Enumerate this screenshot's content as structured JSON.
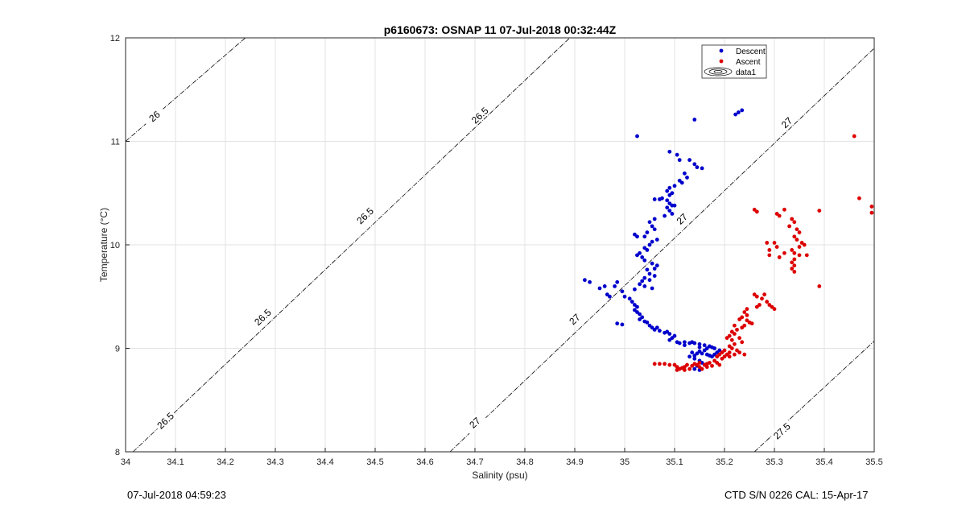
{
  "chart_data": {
    "type": "scatter",
    "title": "p6160673: OSNAP 11 07-Jul-2018 00:32:44Z",
    "xlabel": "Salinity (psu)",
    "ylabel": "Temperature (°C)",
    "xlim": [
      34,
      35.5
    ],
    "ylim": [
      8,
      12
    ],
    "xticks": [
      "34",
      "34.1",
      "34.2",
      "34.3",
      "34.4",
      "34.5",
      "34.6",
      "34.7",
      "34.8",
      "34.9",
      "35",
      "35.1",
      "35.2",
      "35.3",
      "35.4",
      "35.5"
    ],
    "yticks": [
      "8",
      "9",
      "10",
      "11",
      "12"
    ],
    "grid": true,
    "legend": {
      "placement": "top-right",
      "entries": [
        "Descent",
        "Ascent",
        "data1"
      ]
    },
    "colors": {
      "descent": "#0000cc",
      "ascent": "#dd0000",
      "contour": "#000000"
    },
    "contours": [
      {
        "label": "26",
        "points": [
          [
            34.0,
            11.0
          ],
          [
            34.24,
            12.0
          ]
        ]
      },
      {
        "label": "26.5",
        "points": [
          [
            34.015,
            8.0
          ],
          [
            34.89,
            12.0
          ]
        ]
      },
      {
        "label": "27",
        "points": [
          [
            34.65,
            8.0
          ],
          [
            35.5,
            11.9
          ]
        ]
      },
      {
        "label": "27.5",
        "points": [
          [
            35.26,
            8.0
          ],
          [
            35.5,
            9.07
          ]
        ]
      }
    ],
    "contour_labels": [
      {
        "text": "26",
        "x": 34.058,
        "y": 11.24
      },
      {
        "text": "26.5",
        "x": 34.08,
        "y": 8.3
      },
      {
        "text": "26.5",
        "x": 34.275,
        "y": 9.3
      },
      {
        "text": "26.5",
        "x": 34.48,
        "y": 10.28
      },
      {
        "text": "26.5",
        "x": 34.71,
        "y": 11.25
      },
      {
        "text": "27",
        "x": 34.7,
        "y": 8.28
      },
      {
        "text": "27",
        "x": 34.9,
        "y": 9.28
      },
      {
        "text": "27",
        "x": 35.115,
        "y": 10.25
      },
      {
        "text": "27",
        "x": 35.325,
        "y": 11.18
      },
      {
        "text": "27.5",
        "x": 35.315,
        "y": 8.2
      }
    ],
    "series": [
      {
        "name": "Descent",
        "points": [
          [
            35.235,
            11.3
          ],
          [
            35.228,
            11.28
          ],
          [
            35.222,
            11.26
          ],
          [
            35.14,
            11.21
          ],
          [
            35.025,
            11.05
          ],
          [
            35.09,
            10.9
          ],
          [
            35.105,
            10.87
          ],
          [
            35.11,
            10.82
          ],
          [
            35.13,
            10.82
          ],
          [
            35.14,
            10.78
          ],
          [
            35.145,
            10.75
          ],
          [
            35.155,
            10.74
          ],
          [
            35.12,
            10.69
          ],
          [
            35.125,
            10.65
          ],
          [
            35.11,
            10.62
          ],
          [
            35.115,
            10.6
          ],
          [
            35.1,
            10.57
          ],
          [
            35.09,
            10.55
          ],
          [
            35.085,
            10.52
          ],
          [
            35.095,
            10.5
          ],
          [
            35.09,
            10.48
          ],
          [
            35.075,
            10.45
          ],
          [
            35.07,
            10.44
          ],
          [
            35.06,
            10.44
          ],
          [
            35.085,
            10.43
          ],
          [
            35.09,
            10.4
          ],
          [
            35.095,
            10.38
          ],
          [
            35.1,
            10.38
          ],
          [
            35.085,
            10.36
          ],
          [
            35.09,
            10.33
          ],
          [
            35.095,
            10.3
          ],
          [
            35.08,
            10.28
          ],
          [
            35.06,
            10.25
          ],
          [
            35.05,
            10.22
          ],
          [
            35.055,
            10.18
          ],
          [
            35.06,
            10.15
          ],
          [
            35.045,
            10.12
          ],
          [
            35.04,
            10.08
          ],
          [
            35.02,
            10.1
          ],
          [
            35.025,
            10.08
          ],
          [
            35.065,
            10.05
          ],
          [
            35.055,
            10.03
          ],
          [
            35.05,
            10.0
          ],
          [
            35.04,
            9.97
          ],
          [
            35.045,
            9.95
          ],
          [
            35.03,
            9.92
          ],
          [
            35.025,
            9.9
          ],
          [
            35.035,
            9.88
          ],
          [
            35.04,
            9.85
          ],
          [
            35.055,
            9.82
          ],
          [
            35.065,
            9.8
          ],
          [
            35.06,
            9.77
          ],
          [
            35.045,
            9.76
          ],
          [
            35.05,
            9.72
          ],
          [
            35.06,
            9.7
          ],
          [
            35.04,
            9.68
          ],
          [
            35.05,
            9.66
          ],
          [
            35.035,
            9.65
          ],
          [
            35.03,
            9.62
          ],
          [
            35.04,
            9.6
          ],
          [
            35.055,
            9.58
          ],
          [
            35.02,
            9.57
          ],
          [
            34.92,
            9.66
          ],
          [
            34.93,
            9.64
          ],
          [
            34.96,
            9.6
          ],
          [
            34.95,
            9.58
          ],
          [
            34.965,
            9.52
          ],
          [
            34.97,
            9.5
          ],
          [
            34.985,
            9.64
          ],
          [
            34.98,
            9.6
          ],
          [
            34.995,
            9.55
          ],
          [
            35.0,
            9.5
          ],
          [
            35.01,
            9.48
          ],
          [
            35.015,
            9.45
          ],
          [
            35.02,
            9.42
          ],
          [
            35.025,
            9.4
          ],
          [
            35.02,
            9.37
          ],
          [
            35.025,
            9.35
          ],
          [
            35.03,
            9.33
          ],
          [
            35.035,
            9.3
          ],
          [
            35.03,
            9.28
          ],
          [
            35.04,
            9.26
          ],
          [
            35.045,
            9.25
          ],
          [
            35.05,
            9.22
          ],
          [
            35.055,
            9.2
          ],
          [
            35.06,
            9.18
          ],
          [
            35.07,
            9.17
          ],
          [
            35.08,
            9.15
          ],
          [
            35.09,
            9.14
          ],
          [
            35.1,
            9.12
          ],
          [
            35.095,
            9.1
          ],
          [
            35.09,
            9.08
          ],
          [
            34.985,
            9.24
          ],
          [
            34.995,
            9.23
          ],
          [
            35.065,
            9.2
          ],
          [
            35.085,
            9.16
          ],
          [
            35.105,
            9.06
          ],
          [
            35.12,
            9.06
          ],
          [
            35.13,
            9.05
          ],
          [
            35.14,
            9.05
          ],
          [
            35.15,
            9.04
          ],
          [
            35.16,
            9.03
          ],
          [
            35.17,
            9.02
          ],
          [
            35.175,
            9.01
          ],
          [
            35.165,
            9.0
          ],
          [
            35.16,
            8.98
          ],
          [
            35.15,
            8.97
          ],
          [
            35.145,
            8.95
          ],
          [
            35.14,
            8.93
          ],
          [
            35.155,
            8.95
          ],
          [
            35.165,
            8.94
          ],
          [
            35.17,
            8.93
          ],
          [
            35.175,
            8.92
          ],
          [
            35.18,
            8.94
          ],
          [
            35.185,
            8.96
          ],
          [
            35.19,
            8.98
          ],
          [
            35.18,
            9.0
          ],
          [
            35.135,
            8.96
          ],
          [
            35.13,
            8.92
          ],
          [
            35.14,
            8.9
          ],
          [
            35.15,
            8.88
          ],
          [
            35.155,
            8.86
          ],
          [
            35.16,
            8.84
          ],
          [
            35.145,
            8.83
          ],
          [
            35.14,
            8.8
          ],
          [
            35.15,
            8.79
          ],
          [
            35.135,
            9.06
          ],
          [
            35.11,
            9.05
          ],
          [
            35.12,
            9.03
          ],
          [
            35.15,
            9.01
          ]
        ]
      },
      {
        "name": "Ascent",
        "points": [
          [
            35.46,
            11.05
          ],
          [
            35.47,
            10.45
          ],
          [
            35.495,
            10.37
          ],
          [
            35.495,
            10.31
          ],
          [
            35.39,
            10.33
          ],
          [
            35.26,
            10.34
          ],
          [
            35.265,
            10.32
          ],
          [
            35.305,
            10.3
          ],
          [
            35.32,
            10.34
          ],
          [
            35.31,
            10.28
          ],
          [
            35.335,
            10.25
          ],
          [
            35.34,
            10.22
          ],
          [
            35.33,
            10.18
          ],
          [
            35.345,
            10.15
          ],
          [
            35.35,
            10.12
          ],
          [
            35.34,
            10.08
          ],
          [
            35.345,
            10.05
          ],
          [
            35.355,
            10.02
          ],
          [
            35.36,
            10.0
          ],
          [
            35.35,
            9.98
          ],
          [
            35.335,
            9.95
          ],
          [
            35.34,
            9.92
          ],
          [
            35.35,
            9.9
          ],
          [
            35.365,
            9.9
          ],
          [
            35.34,
            9.86
          ],
          [
            35.335,
            9.83
          ],
          [
            35.34,
            9.8
          ],
          [
            35.335,
            9.77
          ],
          [
            35.34,
            9.74
          ],
          [
            35.3,
            10.02
          ],
          [
            35.305,
            9.98
          ],
          [
            35.285,
            10.02
          ],
          [
            35.29,
            9.95
          ],
          [
            35.29,
            9.9
          ],
          [
            35.31,
            9.88
          ],
          [
            35.32,
            9.92
          ],
          [
            35.39,
            9.6
          ],
          [
            35.26,
            9.52
          ],
          [
            35.265,
            9.5
          ],
          [
            35.28,
            9.52
          ],
          [
            35.275,
            9.48
          ],
          [
            35.285,
            9.45
          ],
          [
            35.27,
            9.42
          ],
          [
            35.265,
            9.4
          ],
          [
            35.29,
            9.42
          ],
          [
            35.295,
            9.4
          ],
          [
            35.3,
            9.38
          ],
          [
            35.245,
            9.38
          ],
          [
            35.24,
            9.35
          ],
          [
            35.245,
            9.32
          ],
          [
            35.235,
            9.3
          ],
          [
            35.23,
            9.28
          ],
          [
            35.245,
            9.27
          ],
          [
            35.25,
            9.25
          ],
          [
            35.255,
            9.24
          ],
          [
            35.24,
            9.22
          ],
          [
            35.235,
            9.2
          ],
          [
            35.22,
            9.22
          ],
          [
            35.225,
            9.18
          ],
          [
            35.215,
            9.16
          ],
          [
            35.22,
            9.14
          ],
          [
            35.21,
            9.12
          ],
          [
            35.205,
            9.1
          ],
          [
            35.215,
            9.08
          ],
          [
            35.23,
            9.1
          ],
          [
            35.235,
            9.06
          ],
          [
            35.22,
            9.04
          ],
          [
            35.21,
            9.02
          ],
          [
            35.215,
            9.0
          ],
          [
            35.225,
            8.98
          ],
          [
            35.23,
            8.96
          ],
          [
            35.22,
            8.94
          ],
          [
            35.21,
            8.96
          ],
          [
            35.2,
            8.98
          ],
          [
            35.195,
            8.96
          ],
          [
            35.19,
            8.94
          ],
          [
            35.185,
            8.92
          ],
          [
            35.195,
            8.9
          ],
          [
            35.2,
            8.92
          ],
          [
            35.205,
            8.94
          ],
          [
            35.24,
            8.94
          ],
          [
            35.21,
            8.92
          ],
          [
            35.18,
            8.88
          ],
          [
            35.185,
            8.86
          ],
          [
            35.17,
            8.86
          ],
          [
            35.165,
            8.85
          ],
          [
            35.16,
            8.84
          ],
          [
            35.15,
            8.86
          ],
          [
            35.145,
            8.84
          ],
          [
            35.14,
            8.85
          ],
          [
            35.135,
            8.83
          ],
          [
            35.125,
            8.84
          ],
          [
            35.12,
            8.82
          ],
          [
            35.115,
            8.81
          ],
          [
            35.11,
            8.8
          ],
          [
            35.105,
            8.82
          ],
          [
            35.1,
            8.84
          ],
          [
            35.09,
            8.84
          ],
          [
            35.08,
            8.85
          ],
          [
            35.07,
            8.85
          ],
          [
            35.06,
            8.85
          ],
          [
            35.13,
            8.8
          ],
          [
            35.12,
            8.79
          ],
          [
            35.105,
            8.79
          ],
          [
            35.175,
            8.83
          ],
          [
            35.19,
            8.84
          ],
          [
            35.165,
            8.82
          ],
          [
            35.155,
            8.8
          ],
          [
            35.15,
            8.82
          ]
        ]
      }
    ]
  },
  "footer": {
    "left": "07-Jul-2018 04:59:23",
    "right": "CTD S/N 0226  CAL: 15-Apr-17"
  }
}
